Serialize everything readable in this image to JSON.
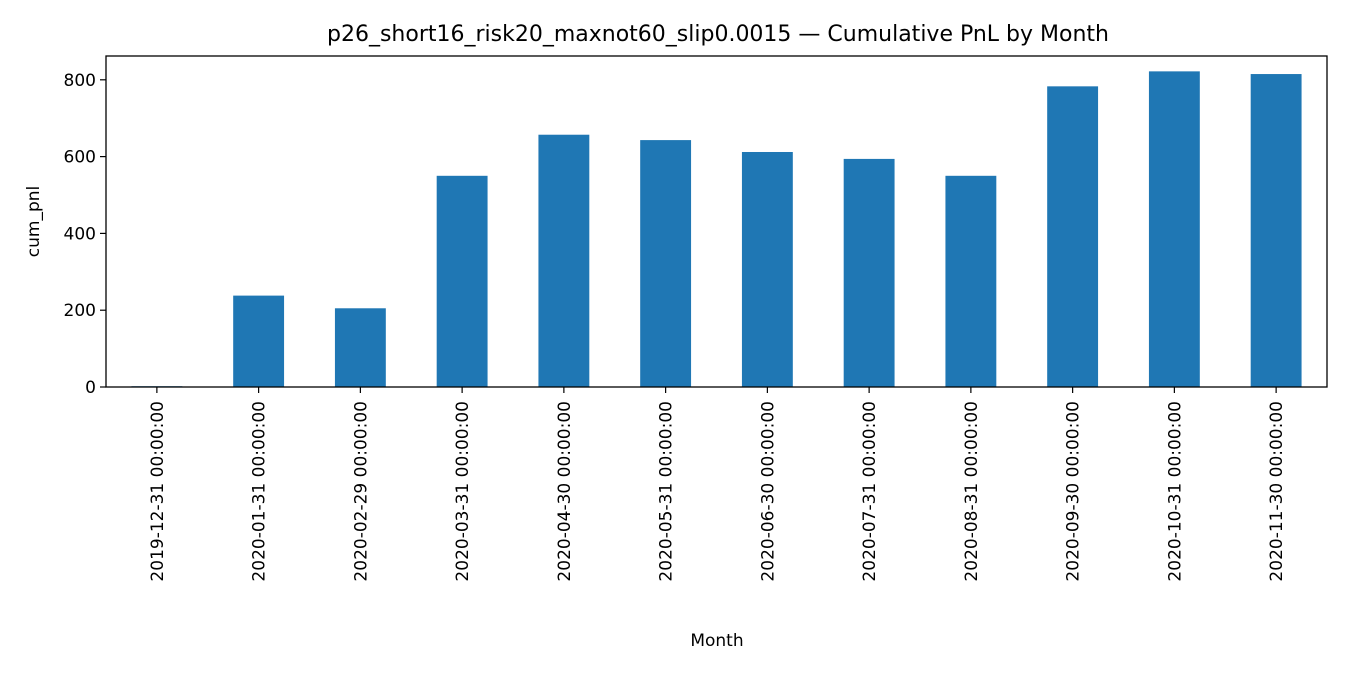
{
  "chart_data": {
    "type": "bar",
    "title": "p26_short16_risk20_maxnot60_slip0.0015 — Cumulative PnL by Month",
    "xlabel": "Month",
    "ylabel": "cum_pnl",
    "categories": [
      "2019-12-31 00:00:00",
      "2020-01-31 00:00:00",
      "2020-02-29 00:00:00",
      "2020-03-31 00:00:00",
      "2020-04-30 00:00:00",
      "2020-05-31 00:00:00",
      "2020-06-30 00:00:00",
      "2020-07-31 00:00:00",
      "2020-08-31 00:00:00",
      "2020-09-30 00:00:00",
      "2020-10-31 00:00:00",
      "2020-11-30 00:00:00"
    ],
    "values": [
      2,
      238,
      205,
      550,
      657,
      643,
      612,
      594,
      550,
      783,
      822,
      815
    ],
    "ylim": [
      0,
      862
    ],
    "yticks": [
      0,
      200,
      400,
      600,
      800
    ],
    "grid": false,
    "color": "#1f77b4"
  }
}
